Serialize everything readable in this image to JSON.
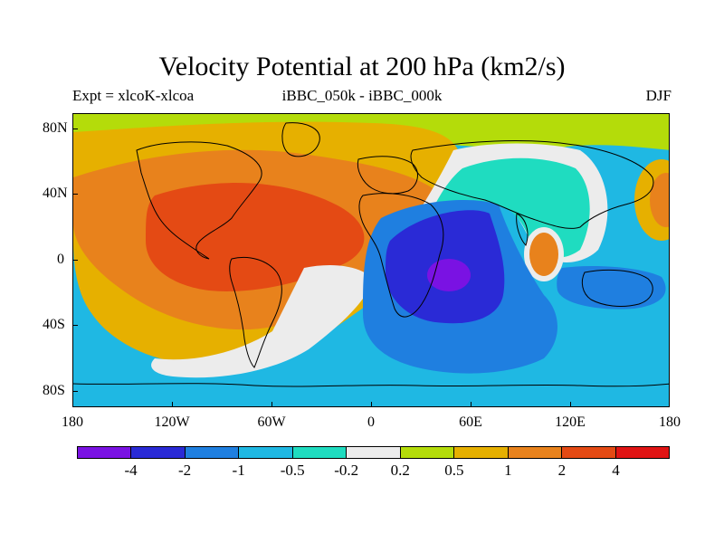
{
  "title": "Velocity Potential at 200 hPa (km2/s)",
  "subtitle_left": "Expt = xlcoK-xlcoa",
  "subtitle_center": "iBBC_050k - iBBC_000k",
  "subtitle_right": "DJF",
  "y_labels": [
    "80N",
    "40N",
    "0",
    "40S",
    "80S"
  ],
  "x_labels": [
    "180",
    "120W",
    "60W",
    "0",
    "60E",
    "120E",
    "180"
  ],
  "colorbar": {
    "colors": [
      "#7a12e3",
      "#2a2ad6",
      "#1f7fe0",
      "#1fb8e3",
      "#1fdcc0",
      "#ececec",
      "#b4dc0a",
      "#e6b000",
      "#e8821c",
      "#e44a14",
      "#e01414"
    ],
    "labels": [
      "-4",
      "-2",
      "-1",
      "-0.5",
      "-0.2",
      "0.2",
      "0.5",
      "1",
      "2",
      "4"
    ]
  },
  "colors": {
    "ocean_light_blue": "#1fb8e3",
    "mid_blue": "#1f7fe0",
    "dark_blue": "#2a2ad6",
    "purple": "#7a12e3",
    "teal": "#1fdcc0",
    "white_band": "#ececec",
    "yellow_green": "#b4dc0a",
    "gold": "#e6b000",
    "orange": "#e8821c",
    "red_orange": "#e44a14"
  }
}
